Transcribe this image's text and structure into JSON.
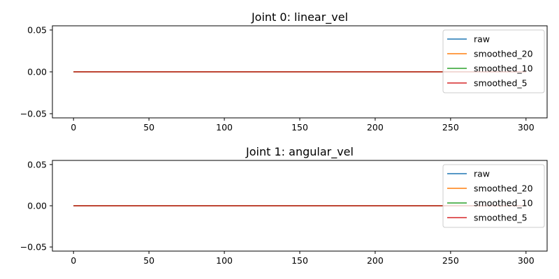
{
  "chart_data": [
    {
      "type": "line",
      "title": "Joint 0: linear_vel",
      "xlabel": "",
      "ylabel": "",
      "xlim": [
        -14,
        314
      ],
      "ylim": [
        -0.055,
        0.055
      ],
      "xticks": [
        0,
        50,
        100,
        150,
        200,
        250,
        300
      ],
      "xtick_labels": [
        "0",
        "50",
        "100",
        "150",
        "200",
        "250",
        "300"
      ],
      "yticks": [
        -0.05,
        0.0,
        0.05
      ],
      "ytick_labels": [
        "−0.05",
        "0.00",
        "0.05"
      ],
      "grid": false,
      "legend_position": "upper right",
      "series": [
        {
          "name": "raw",
          "color": "#1f77b4",
          "x": [
            0,
            300
          ],
          "y": [
            0,
            0
          ]
        },
        {
          "name": "smoothed_20",
          "color": "#ff7f0e",
          "x": [
            0,
            300
          ],
          "y": [
            0,
            0
          ]
        },
        {
          "name": "smoothed_10",
          "color": "#2ca02c",
          "x": [
            0,
            300
          ],
          "y": [
            0,
            0
          ]
        },
        {
          "name": "smoothed_5",
          "color": "#d62728",
          "x": [
            0,
            300
          ],
          "y": [
            0,
            0
          ]
        }
      ]
    },
    {
      "type": "line",
      "title": "Joint 1: angular_vel",
      "xlabel": "",
      "ylabel": "",
      "xlim": [
        -14,
        314
      ],
      "ylim": [
        -0.055,
        0.055
      ],
      "xticks": [
        0,
        50,
        100,
        150,
        200,
        250,
        300
      ],
      "xtick_labels": [
        "0",
        "50",
        "100",
        "150",
        "200",
        "250",
        "300"
      ],
      "yticks": [
        -0.05,
        0.0,
        0.05
      ],
      "ytick_labels": [
        "−0.05",
        "0.00",
        "0.05"
      ],
      "grid": false,
      "legend_position": "upper right",
      "series": [
        {
          "name": "raw",
          "color": "#1f77b4",
          "x": [
            0,
            300
          ],
          "y": [
            0,
            0
          ]
        },
        {
          "name": "smoothed_20",
          "color": "#ff7f0e",
          "x": [
            0,
            300
          ],
          "y": [
            0,
            0
          ]
        },
        {
          "name": "smoothed_10",
          "color": "#2ca02c",
          "x": [
            0,
            300
          ],
          "y": [
            0,
            0
          ]
        },
        {
          "name": "smoothed_5",
          "color": "#d62728",
          "x": [
            0,
            300
          ],
          "y": [
            0,
            0
          ]
        }
      ]
    }
  ]
}
